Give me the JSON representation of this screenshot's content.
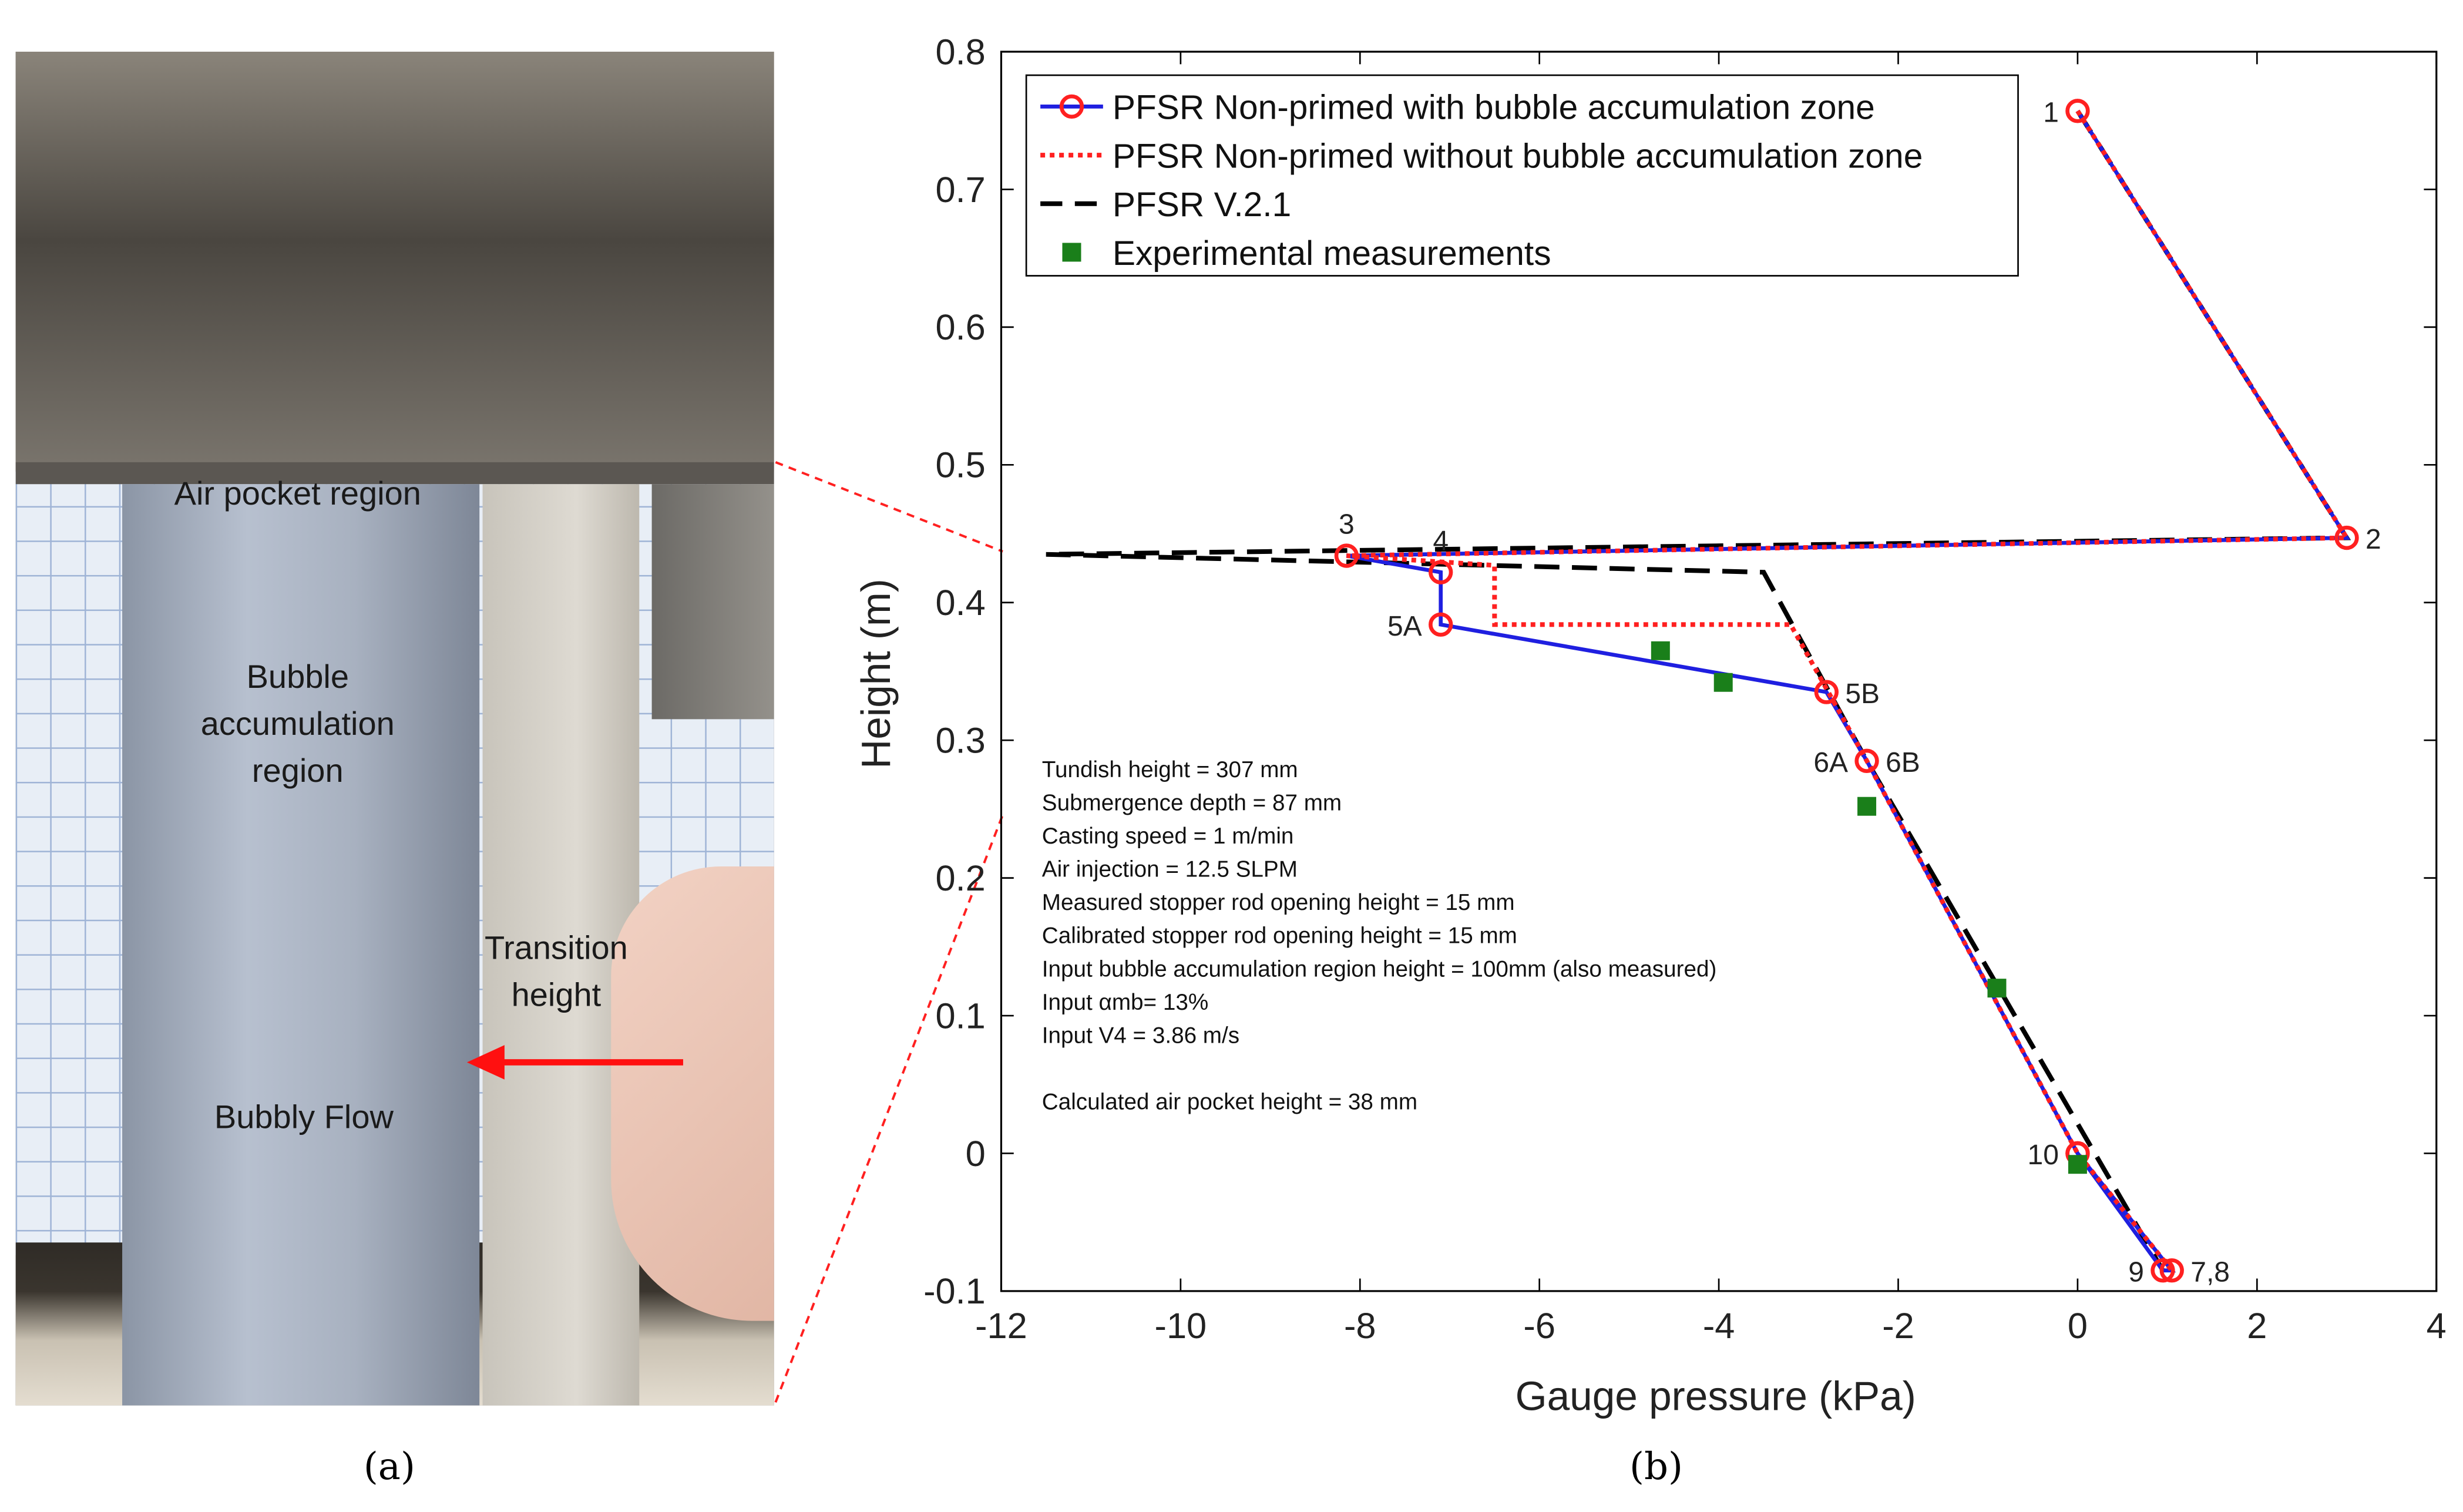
{
  "photo": {
    "labels": {
      "air_pocket": "Air pocket region",
      "bubble_acc": [
        "Bubble",
        "accumulation",
        "region"
      ],
      "transition": [
        "Transition",
        "height"
      ],
      "bubbly_flow": "Bubbly Flow"
    },
    "icons": [
      "arrow-left-icon"
    ]
  },
  "panel_labels": {
    "a": "(a)",
    "b": "(b)"
  },
  "chart_data": {
    "type": "line",
    "xlabel": "Gauge pressure (kPa)",
    "ylabel": "Height (m)",
    "xlim": [
      -12,
      4
    ],
    "ylim": [
      -0.1,
      0.8
    ],
    "xticks": [
      -12,
      -10,
      -8,
      -6,
      -4,
      -2,
      0,
      2,
      4
    ],
    "yticks": [
      -0.1,
      0,
      0.1,
      0.2,
      0.3,
      0.4,
      0.5,
      0.6,
      0.7,
      0.8
    ],
    "grid": false,
    "legend_position": "top-left",
    "series": [
      {
        "name": "PFSR Non-primed with bubble accumulation zone",
        "color": "#1f1fe0",
        "style": "solid-with-circle-markers",
        "marker_color": "#ff2020",
        "points": [
          [
            0.0,
            0.757
          ],
          [
            3.0,
            0.447
          ],
          [
            -8.15,
            0.434
          ],
          [
            -7.1,
            0.422
          ],
          [
            -7.1,
            0.384
          ],
          [
            -2.8,
            0.335
          ],
          [
            -2.35,
            0.285
          ],
          [
            0.0,
            0.0
          ],
          [
            1.05,
            -0.085
          ],
          [
            0.95,
            -0.085
          ],
          [
            0.0,
            0.0
          ]
        ]
      },
      {
        "name": "PFSR Non-primed without bubble accumulation zone",
        "color": "#ff2020",
        "style": "dotted",
        "points": [
          [
            0.0,
            0.757
          ],
          [
            3.0,
            0.447
          ],
          [
            -8.15,
            0.434
          ],
          [
            -6.5,
            0.427
          ],
          [
            -6.5,
            0.384
          ],
          [
            -3.2,
            0.384
          ],
          [
            -2.35,
            0.285
          ],
          [
            0.0,
            0.0
          ],
          [
            1.05,
            -0.085
          ]
        ]
      },
      {
        "name": "PFSR V.2.1",
        "color": "#000000",
        "style": "dashed",
        "points": [
          [
            0.0,
            0.757
          ],
          [
            3.0,
            0.447
          ],
          [
            -11.5,
            0.435
          ],
          [
            -3.5,
            0.422
          ],
          [
            -2.35,
            0.285
          ],
          [
            0.95,
            -0.085
          ]
        ]
      },
      {
        "name": "Experimental measurements",
        "color": "#1a7f1a",
        "style": "square-markers",
        "points": [
          [
            -4.65,
            0.365
          ],
          [
            -3.95,
            0.342
          ],
          [
            -2.35,
            0.252
          ],
          [
            -0.9,
            0.12
          ],
          [
            0.0,
            -0.008
          ]
        ]
      }
    ],
    "point_labels": [
      {
        "text": "1",
        "x": 0.0,
        "y": 0.757,
        "anchor": "left"
      },
      {
        "text": "2",
        "x": 3.0,
        "y": 0.447,
        "anchor": "right"
      },
      {
        "text": "3",
        "x": -8.15,
        "y": 0.434,
        "anchor": "above"
      },
      {
        "text": "4",
        "x": -7.1,
        "y": 0.422,
        "anchor": "above"
      },
      {
        "text": "5A",
        "x": -7.1,
        "y": 0.384,
        "anchor": "left"
      },
      {
        "text": "5B",
        "x": -2.8,
        "y": 0.335,
        "anchor": "right"
      },
      {
        "text": "6A",
        "x": -2.35,
        "y": 0.285,
        "anchor": "left"
      },
      {
        "text": "6B",
        "x": -2.35,
        "y": 0.285,
        "anchor": "right"
      },
      {
        "text": "10",
        "x": 0.0,
        "y": 0.0,
        "anchor": "left"
      },
      {
        "text": "9",
        "x": 0.95,
        "y": -0.085,
        "anchor": "left"
      },
      {
        "text": "7,8",
        "x": 1.05,
        "y": -0.085,
        "anchor": "right"
      }
    ],
    "annotations": [
      "Tundish height = 307 mm",
      "Submergence depth = 87 mm",
      "Casting speed = 1 m/min",
      "Air injection = 12.5 SLPM",
      "Measured stopper rod opening height = 15 mm",
      "Calibrated stopper rod opening height = 15 mm",
      "Input bubble accumulation region height = 100mm (also measured)",
      "Input αmb= 13%",
      "Input V4 = 3.86 m/s",
      "",
      "Calculated air pocket height = 38 mm"
    ]
  }
}
